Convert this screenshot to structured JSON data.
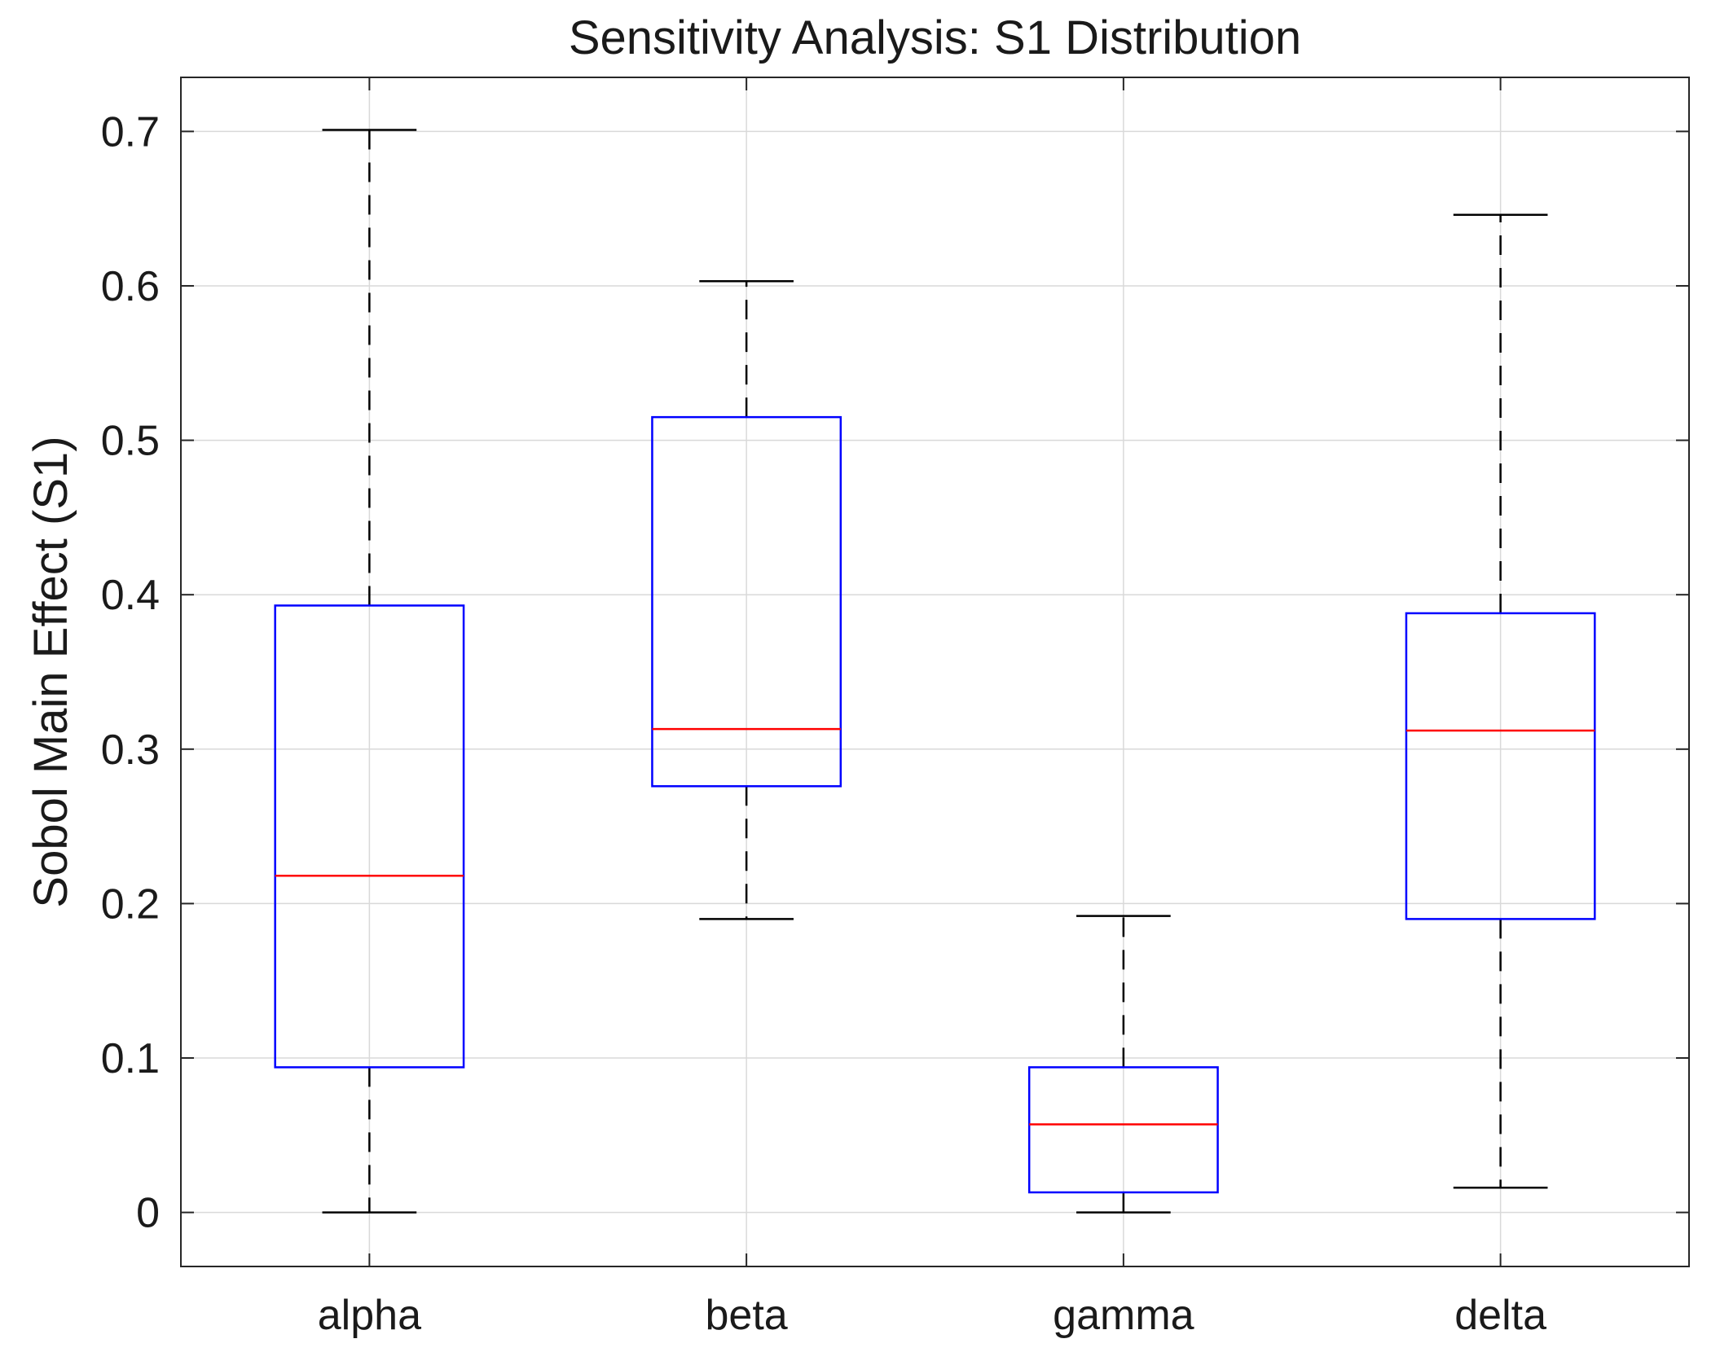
{
  "chart_data": {
    "type": "box",
    "title": "Sensitivity Analysis: S1 Distribution",
    "xlabel": "",
    "ylabel": "Sobol Main Effect (S1)",
    "ylim": [
      -0.035,
      0.735
    ],
    "yticks": [
      0,
      0.1,
      0.2,
      0.3,
      0.4,
      0.5,
      0.6,
      0.7
    ],
    "ytick_labels": [
      "0",
      "0.1",
      "0.2",
      "0.3",
      "0.4",
      "0.5",
      "0.6",
      "0.7"
    ],
    "grid": true,
    "categories": [
      "alpha",
      "beta",
      "gamma",
      "delta"
    ],
    "boxes": [
      {
        "name": "alpha",
        "whisker_low": 0.0,
        "q1": 0.094,
        "median": 0.218,
        "q3": 0.393,
        "whisker_high": 0.701
      },
      {
        "name": "beta",
        "whisker_low": 0.19,
        "q1": 0.276,
        "median": 0.313,
        "q3": 0.515,
        "whisker_high": 0.603
      },
      {
        "name": "gamma",
        "whisker_low": 0.0,
        "q1": 0.013,
        "median": 0.057,
        "q3": 0.094,
        "whisker_high": 0.192
      },
      {
        "name": "delta",
        "whisker_low": 0.016,
        "q1": 0.19,
        "median": 0.312,
        "q3": 0.388,
        "whisker_high": 0.646
      }
    ],
    "colors": {
      "box": "#0000ff",
      "median": "#ff0000",
      "whisker": "#000000",
      "grid": "#d9d9d9",
      "axes": "#262626"
    }
  }
}
